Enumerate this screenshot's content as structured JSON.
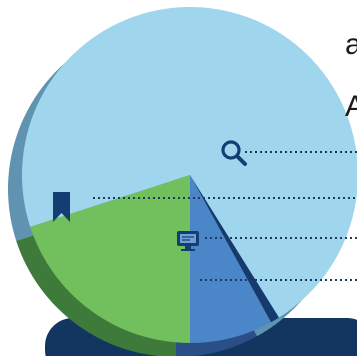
{
  "chart_data": {
    "type": "pie",
    "title_fragment_line1": "a",
    "title_fragment_line2": "A",
    "slices": [
      {
        "name": "",
        "value": 72,
        "color": "#9fd6ee",
        "icon": "search-icon"
      },
      {
        "name": "",
        "value": 8,
        "color": "#4a86c8",
        "icon": "monitor-icon"
      },
      {
        "name": "",
        "value": 20,
        "color": "#72bf5e",
        "icon": "bookmark-icon"
      }
    ],
    "colors": {
      "side_light_blue": "#5f93b0",
      "side_green": "#3e7a3a",
      "side_blue": "#2a4f86",
      "dark_accent": "#163a6b",
      "bottom_bar": "#12365f",
      "leader_line": "#1f3a5f",
      "icon": "#143d73"
    },
    "legend": "right"
  }
}
